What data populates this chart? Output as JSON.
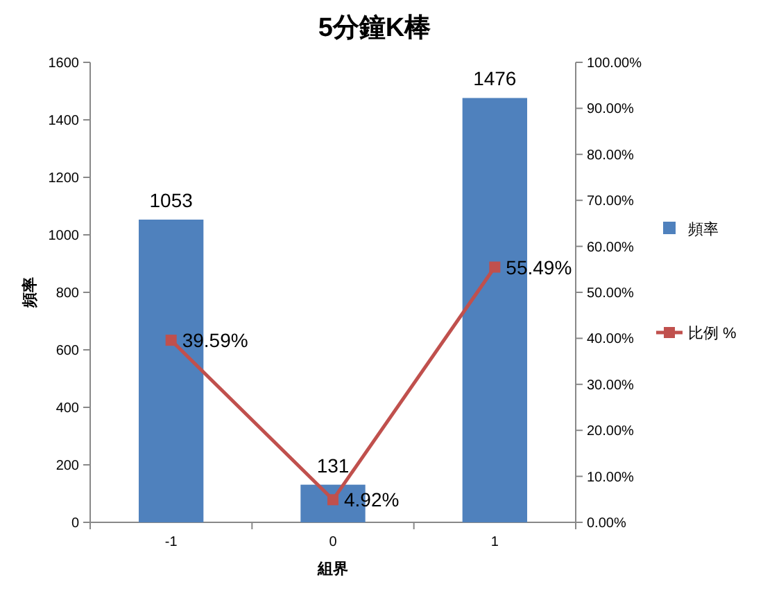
{
  "chart_data": {
    "type": "bar",
    "title": "5分鐘K棒",
    "xlabel": "組界",
    "ylabel": "頻率",
    "categories": [
      "-1",
      "0",
      "1"
    ],
    "series": [
      {
        "name": "頻率",
        "color": "#4f81bd",
        "values": [
          1053,
          131,
          1476
        ],
        "value_labels": [
          "1053",
          "131",
          "1476"
        ]
      },
      {
        "name": "比例 %",
        "type": "line",
        "axis": "y2",
        "color": "#c0504d",
        "marker": "square",
        "values": [
          39.59,
          4.92,
          55.49
        ],
        "value_labels": [
          "39.59%",
          "4.92%",
          "55.49%"
        ]
      }
    ],
    "ylim": [
      0,
      1600
    ],
    "yticks": [
      0,
      200,
      400,
      600,
      800,
      1000,
      1200,
      1400,
      1600
    ],
    "y2lim": [
      0,
      100
    ],
    "y2ticks": [
      {
        "value": 0,
        "label": "0.00%"
      },
      {
        "value": 10,
        "label": "10.00%"
      },
      {
        "value": 20,
        "label": "20.00%"
      },
      {
        "value": 30,
        "label": "30.00%"
      },
      {
        "value": 40,
        "label": "40.00%"
      },
      {
        "value": 50,
        "label": "50.00%"
      },
      {
        "value": 60,
        "label": "60.00%"
      },
      {
        "value": 70,
        "label": "70.00%"
      },
      {
        "value": 80,
        "label": "80.00%"
      },
      {
        "value": 90,
        "label": "90.00%"
      },
      {
        "value": 100,
        "label": "100.00%"
      }
    ],
    "legend": "right",
    "grid": false
  }
}
